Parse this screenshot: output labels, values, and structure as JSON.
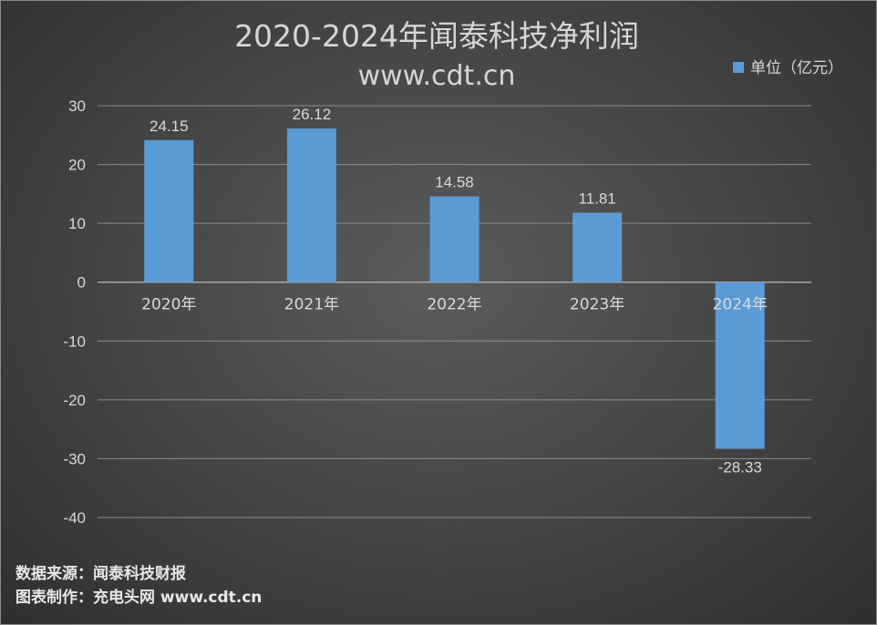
{
  "chart_data": {
    "type": "bar",
    "title": "2020-2024年闻泰科技净利润",
    "subtitle": "www.cdt.cn",
    "categories": [
      "2020年",
      "2021年",
      "2022年",
      "2023年",
      "2024年"
    ],
    "series": [
      {
        "name": "单位（亿元）",
        "values": [
          24.15,
          26.12,
          14.58,
          11.81,
          -28.33
        ],
        "color": "#5b9bd5"
      }
    ],
    "data_labels": [
      "24.15",
      "26.12",
      "14.58",
      "11.81",
      "-28.33"
    ],
    "ylim": [
      -40,
      30
    ],
    "yticks": [
      30,
      20,
      10,
      0,
      -10,
      -20,
      -30,
      -40
    ],
    "grid": true,
    "legend_position": "top-right"
  },
  "footer": {
    "source": "数据来源：闻泰科技财报",
    "credit": "图表制作：充电头网 www.cdt.cn"
  },
  "colors": {
    "background": "#484848",
    "bar": "#5b9bd5",
    "gridline": "#8c8c8c",
    "text": "#d9d9d9"
  }
}
